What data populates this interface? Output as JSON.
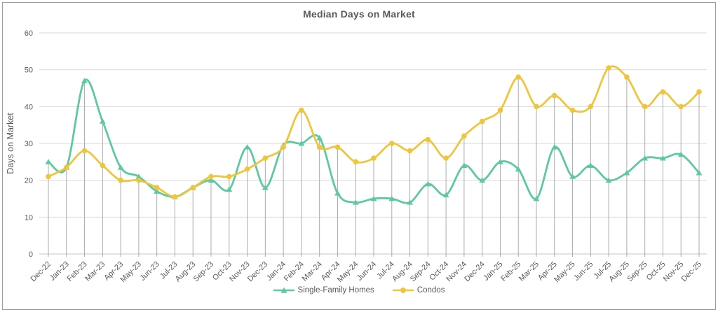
{
  "chart_data": {
    "type": "line",
    "title": "Median Days on Market",
    "xlabel": "",
    "ylabel": "Days on Market",
    "ylim": [
      0,
      60
    ],
    "yticks": [
      0,
      10,
      20,
      30,
      40,
      50,
      60
    ],
    "grid": "horizontal",
    "drop_lines": true,
    "smooth": true,
    "legend_position": "bottom",
    "categories": [
      "Dec-22",
      "Jan-23",
      "Feb-23",
      "Mar-23",
      "Apr-23",
      "May-23",
      "Jun-23",
      "Jul-23",
      "Aug-23",
      "Sep-23",
      "Oct-23",
      "Nov-23",
      "Dec-23",
      "Jan-24",
      "Feb-24",
      "Mar-24",
      "Apr-24",
      "May-24",
      "Jun-24",
      "Jul-24",
      "Aug-24",
      "Sep-24",
      "Oct-24",
      "Nov-24",
      "Dec-24",
      "Jan-25",
      "Feb-25",
      "Mar-25",
      "Apr-25",
      "May-25",
      "Jun-25",
      "Jul-25",
      "Aug-25",
      "Sep-25",
      "Oct-25",
      "Nov-25",
      "Dec-25"
    ],
    "series": [
      {
        "name": "Single-Family Homes",
        "color": "#5ec9a0",
        "marker": "triangle",
        "values": [
          25,
          23.5,
          47,
          36,
          23.5,
          21,
          17,
          15.5,
          18,
          20,
          17.5,
          29,
          18,
          29.5,
          30,
          31.5,
          16.5,
          14,
          15,
          15,
          14,
          19,
          16,
          24,
          20,
          25,
          23,
          15,
          29,
          21,
          24,
          20,
          22,
          26,
          26,
          27,
          22
        ]
      },
      {
        "name": "Condos",
        "color": "#eec63e",
        "marker": "circle",
        "values": [
          21,
          23.5,
          28,
          24,
          20,
          20,
          18,
          15.5,
          18,
          21,
          21,
          23,
          26,
          29,
          39,
          29,
          29,
          25,
          26,
          30,
          28,
          31,
          26,
          32,
          36,
          39,
          48,
          40,
          43,
          39,
          40,
          50.5,
          48,
          40,
          44,
          40,
          44
        ]
      }
    ],
    "text_color": "#595959",
    "gridline_color": "#d9d9d9",
    "axis_line_color": "#c6c6c6",
    "drop_line_color": "#ababab"
  }
}
